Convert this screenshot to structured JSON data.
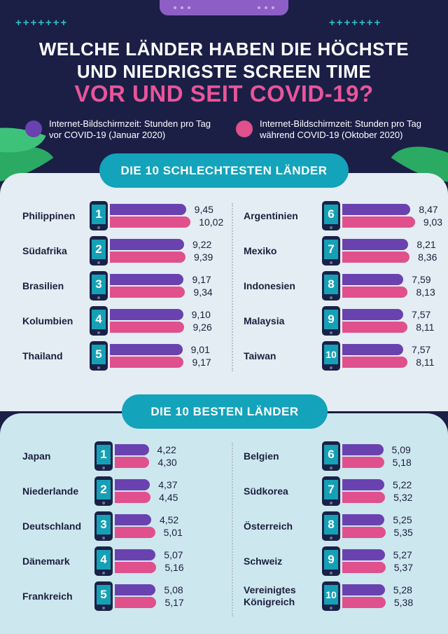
{
  "header": {
    "title_line1": "WELCHE LÄNDER HABEN DIE HÖCHSTE",
    "title_line2": "UND NIEDRIGSTE SCREEN TIME",
    "title_line3": "VOR UND SEIT COVID-19?"
  },
  "decor": {
    "plus_left": "+++++++",
    "plus_right": "+++++++"
  },
  "legend": {
    "before": {
      "line1": "Internet-Bildschirmzeit: Stunden pro Tag",
      "line2": "vor COVID-19 (Januar 2020)"
    },
    "after": {
      "line1": "Internet-Bildschirmzeit: Stunden pro Tag",
      "line2": "während COVID-19 (Oktober 2020)"
    }
  },
  "colors": {
    "before": "#6a42b0",
    "after": "#e0508d",
    "accent": "#13a3bb",
    "background": "#1b1f46"
  },
  "chart_data": [
    {
      "type": "bar",
      "title": "DIE 10 SCHLECHTESTEN LÄNDER",
      "unit": "Stunden pro Tag",
      "series_names": [
        "vor COVID-19 (Januar 2020)",
        "während COVID-19 (Oktober 2020)"
      ],
      "items": [
        {
          "rank": "1",
          "name": [
            "Philippinen"
          ],
          "before": 9.45,
          "after": 10.02,
          "before_label": "9,45",
          "after_label": "10,02"
        },
        {
          "rank": "2",
          "name": [
            "Südafrika"
          ],
          "before": 9.22,
          "after": 9.39,
          "before_label": "9,22",
          "after_label": "9,39"
        },
        {
          "rank": "3",
          "name": [
            "Brasilien"
          ],
          "before": 9.17,
          "after": 9.34,
          "before_label": "9,17",
          "after_label": "9,34"
        },
        {
          "rank": "4",
          "name": [
            "Kolumbien"
          ],
          "before": 9.1,
          "after": 9.26,
          "before_label": "9,10",
          "after_label": "9,26"
        },
        {
          "rank": "5",
          "name": [
            "Thailand"
          ],
          "before": 9.01,
          "after": 9.17,
          "before_label": "9,01",
          "after_label": "9,17"
        },
        {
          "rank": "6",
          "name": [
            "Argentinien"
          ],
          "before": 8.47,
          "after": 9.03,
          "before_label": "8,47",
          "after_label": "9,03"
        },
        {
          "rank": "7",
          "name": [
            "Mexiko"
          ],
          "before": 8.21,
          "after": 8.36,
          "before_label": "8,21",
          "after_label": "8,36"
        },
        {
          "rank": "8",
          "name": [
            "Indonesien"
          ],
          "before": 7.59,
          "after": 8.13,
          "before_label": "7,59",
          "after_label": "8,13"
        },
        {
          "rank": "9",
          "name": [
            "Malaysia"
          ],
          "before": 7.57,
          "after": 8.11,
          "before_label": "7,57",
          "after_label": "8,11"
        },
        {
          "rank": "10",
          "name": [
            "Taiwan"
          ],
          "before": 7.57,
          "after": 8.11,
          "before_label": "7,57",
          "after_label": "8,11"
        }
      ]
    },
    {
      "type": "bar",
      "title": "DIE 10 BESTEN LÄNDER",
      "unit": "Stunden pro Tag",
      "series_names": [
        "vor COVID-19 (Januar 2020)",
        "während COVID-19 (Oktober 2020)"
      ],
      "items": [
        {
          "rank": "1",
          "name": [
            "Japan"
          ],
          "before": 4.22,
          "after": 4.3,
          "before_label": "4,22",
          "after_label": "4,30"
        },
        {
          "rank": "2",
          "name": [
            "Niederlande"
          ],
          "before": 4.37,
          "after": 4.45,
          "before_label": "4,37",
          "after_label": "4,45"
        },
        {
          "rank": "3",
          "name": [
            "Deutschland"
          ],
          "before": 4.52,
          "after": 5.01,
          "before_label": "4,52",
          "after_label": "5,01"
        },
        {
          "rank": "4",
          "name": [
            "Dänemark"
          ],
          "before": 5.07,
          "after": 5.16,
          "before_label": "5,07",
          "after_label": "5,16"
        },
        {
          "rank": "5",
          "name": [
            "Frankreich"
          ],
          "before": 5.08,
          "after": 5.17,
          "before_label": "5,08",
          "after_label": "5,17"
        },
        {
          "rank": "6",
          "name": [
            "Belgien"
          ],
          "before": 5.09,
          "after": 5.18,
          "before_label": "5,09",
          "after_label": "5,18"
        },
        {
          "rank": "7",
          "name": [
            "Südkorea"
          ],
          "before": 5.22,
          "after": 5.32,
          "before_label": "5,22",
          "after_label": "5,32"
        },
        {
          "rank": "8",
          "name": [
            "Österreich"
          ],
          "before": 5.25,
          "after": 5.35,
          "before_label": "5,25",
          "after_label": "5,35"
        },
        {
          "rank": "9",
          "name": [
            "Schweiz"
          ],
          "before": 5.27,
          "after": 5.37,
          "before_label": "5,27",
          "after_label": "5,37"
        },
        {
          "rank": "10",
          "name": [
            "Vereinigtes",
            "Königreich"
          ],
          "before": 5.28,
          "after": 5.38,
          "before_label": "5,28",
          "after_label": "5,38"
        }
      ]
    }
  ]
}
